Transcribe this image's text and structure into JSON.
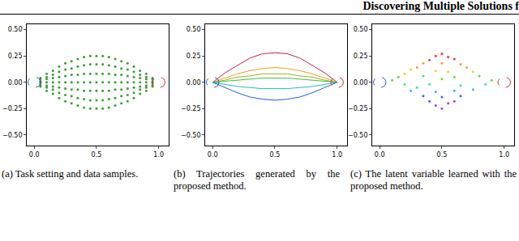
{
  "header": "Discovering Multiple Solutions f",
  "chart_data": [
    {
      "type": "scatter",
      "caption": "(a) Task setting and data samples.",
      "xlim": [
        -0.06,
        1.08
      ],
      "ylim": [
        -0.6,
        0.55
      ],
      "xticks": [
        {
          "value": 0,
          "label": "0.0"
        },
        {
          "value": 0.5,
          "label": "0.5"
        },
        {
          "value": 1,
          "label": "1.0"
        }
      ],
      "yticks": [
        {
          "value": -0.5,
          "label": "−0.50"
        },
        {
          "value": -0.25,
          "label": "−0.25"
        },
        {
          "value": 0,
          "label": "0.00"
        },
        {
          "value": 0.25,
          "label": "0.25"
        },
        {
          "value": 0.5,
          "label": "0.50"
        }
      ],
      "grid": false,
      "regions": [
        {
          "x": 0,
          "y": 0,
          "r": 0.05,
          "color": "#3050d0",
          "line_style": "dashed"
        },
        {
          "x": 1,
          "y": 0,
          "r": 0.05,
          "color": "#d03030",
          "line_style": "dashed"
        }
      ],
      "series": [
        {
          "color": "#3a9a3a",
          "marker": "dot",
          "columns": [
            {
              "x": 0.05,
              "y": [
                -0.04,
                -0.03,
                -0.01,
                0,
                0.01,
                0.03,
                0.04
              ]
            },
            {
              "x": 0.1,
              "y": [
                -0.08,
                -0.05,
                -0.03,
                0,
                0.03,
                0.05,
                0.08
              ]
            },
            {
              "x": 0.15,
              "y": [
                -0.11,
                -0.07,
                -0.04,
                0,
                0.04,
                0.07,
                0.11
              ]
            },
            {
              "x": 0.2,
              "y": [
                -0.15,
                -0.1,
                -0.05,
                0,
                0.05,
                0.1,
                0.15
              ]
            },
            {
              "x": 0.25,
              "y": [
                -0.18,
                -0.12,
                -0.06,
                0,
                0.06,
                0.12,
                0.18
              ]
            },
            {
              "x": 0.3,
              "y": [
                -0.2,
                -0.13,
                -0.07,
                0,
                0.07,
                0.13,
                0.2
              ]
            },
            {
              "x": 0.35,
              "y": [
                -0.22,
                -0.15,
                -0.07,
                0,
                0.07,
                0.15,
                0.22
              ]
            },
            {
              "x": 0.4,
              "y": [
                -0.24,
                -0.16,
                -0.08,
                0,
                0.08,
                0.16,
                0.24
              ]
            },
            {
              "x": 0.45,
              "y": [
                -0.25,
                -0.17,
                -0.08,
                0,
                0.08,
                0.17,
                0.25
              ]
            },
            {
              "x": 0.5,
              "y": [
                -0.25,
                -0.17,
                -0.08,
                0,
                0.08,
                0.17,
                0.25
              ]
            },
            {
              "x": 0.55,
              "y": [
                -0.25,
                -0.17,
                -0.08,
                0,
                0.08,
                0.17,
                0.25
              ]
            },
            {
              "x": 0.6,
              "y": [
                -0.24,
                -0.16,
                -0.08,
                0,
                0.08,
                0.16,
                0.24
              ]
            },
            {
              "x": 0.65,
              "y": [
                -0.22,
                -0.15,
                -0.07,
                0,
                0.07,
                0.15,
                0.22
              ]
            },
            {
              "x": 0.7,
              "y": [
                -0.2,
                -0.13,
                -0.07,
                0,
                0.07,
                0.13,
                0.2
              ]
            },
            {
              "x": 0.75,
              "y": [
                -0.18,
                -0.12,
                -0.06,
                0,
                0.06,
                0.12,
                0.18
              ]
            },
            {
              "x": 0.8,
              "y": [
                -0.15,
                -0.1,
                -0.05,
                0,
                0.05,
                0.1,
                0.15
              ]
            },
            {
              "x": 0.85,
              "y": [
                -0.11,
                -0.07,
                -0.04,
                0,
                0.04,
                0.07,
                0.11
              ]
            },
            {
              "x": 0.9,
              "y": [
                -0.08,
                -0.05,
                -0.03,
                0,
                0.03,
                0.05,
                0.08
              ]
            },
            {
              "x": 0.95,
              "y": [
                -0.04,
                -0.03,
                -0.01,
                0,
                0.01,
                0.03,
                0.04
              ]
            }
          ]
        }
      ]
    },
    {
      "type": "line",
      "caption": "(b) Trajectories generated by the proposed method.",
      "xlim": [
        -0.06,
        1.08
      ],
      "ylim": [
        -0.6,
        0.55
      ],
      "xticks": [
        {
          "value": 0,
          "label": "0.0"
        },
        {
          "value": 0.5,
          "label": "0.5"
        },
        {
          "value": 1,
          "label": "1.0"
        }
      ],
      "yticks": [
        {
          "value": -0.5,
          "label": "−0.50"
        },
        {
          "value": -0.25,
          "label": "−0.25"
        },
        {
          "value": 0,
          "label": "0.00"
        },
        {
          "value": 0.25,
          "label": "0.25"
        },
        {
          "value": 0.5,
          "label": "0.50"
        }
      ],
      "grid": false,
      "regions": [
        {
          "x": 0,
          "y": 0,
          "r": 0.05,
          "color": "#3050d0",
          "line_style": "dashed"
        },
        {
          "x": 1,
          "y": 0,
          "r": 0.05,
          "color": "#d03030",
          "line_style": "dashed"
        }
      ],
      "x": [
        0,
        0.1,
        0.2,
        0.3,
        0.4,
        0.5,
        0.6,
        0.7,
        0.8,
        0.9,
        1
      ],
      "series": [
        {
          "color": "#d02040",
          "line_style": "solid",
          "values": [
            0,
            0.09,
            0.16,
            0.23,
            0.27,
            0.28,
            0.27,
            0.23,
            0.16,
            0.09,
            0
          ]
        },
        {
          "color": "#f0a020",
          "line_style": "solid",
          "values": [
            0,
            0.04,
            0.08,
            0.11,
            0.13,
            0.14,
            0.13,
            0.11,
            0.08,
            0.04,
            0
          ]
        },
        {
          "color": "#a0b020",
          "line_style": "solid",
          "values": [
            0,
            0.02,
            0.05,
            0.06,
            0.08,
            0.08,
            0.08,
            0.06,
            0.05,
            0.02,
            0
          ]
        },
        {
          "color": "#40c040",
          "line_style": "solid",
          "values": [
            0,
            0.01,
            0.02,
            0.03,
            0.04,
            0.04,
            0.04,
            0.03,
            0.02,
            0.01,
            0
          ]
        },
        {
          "color": "#20c0c0",
          "line_style": "solid",
          "values": [
            0,
            -0.02,
            -0.04,
            -0.05,
            -0.06,
            -0.06,
            -0.06,
            -0.05,
            -0.04,
            -0.02,
            0
          ]
        },
        {
          "color": "#2060e0",
          "line_style": "solid",
          "values": [
            0,
            -0.05,
            -0.1,
            -0.14,
            -0.16,
            -0.17,
            -0.16,
            -0.14,
            -0.1,
            -0.05,
            0
          ]
        }
      ]
    },
    {
      "type": "scatter",
      "caption": "(c) The latent variable learned with the proposed method.",
      "xlim": [
        -0.06,
        1.08
      ],
      "ylim": [
        -0.6,
        0.55
      ],
      "xticks": [
        {
          "value": 0,
          "label": "0.0"
        },
        {
          "value": 0.5,
          "label": "0.5"
        },
        {
          "value": 1,
          "label": "1.0"
        }
      ],
      "yticks": [
        {
          "value": -0.5,
          "label": "−0.50"
        },
        {
          "value": -0.25,
          "label": "−0.25"
        },
        {
          "value": 0,
          "label": "0.00"
        },
        {
          "value": 0.25,
          "label": "0.25"
        },
        {
          "value": 0.5,
          "label": "0.50"
        }
      ],
      "grid": false,
      "regions": [
        {
          "x": 0,
          "y": 0,
          "r": 0.05,
          "color": "#3050d0",
          "line_style": "dashed"
        },
        {
          "x": 1,
          "y": 0,
          "r": 0.05,
          "color": "#d03030",
          "line_style": "dashed"
        }
      ],
      "series": [
        {
          "marker": "dot",
          "x": [
            0.5,
            0.45,
            0.55,
            0.6,
            0.4,
            0.35,
            0.5,
            0.65,
            0.3,
            0.7,
            0.25,
            0.45,
            0.55,
            0.75,
            0.2,
            0.15,
            0.35,
            0.6,
            0.8,
            0.1,
            0.5,
            0.9,
            0.2,
            0.4,
            0.65,
            0.85,
            0.3,
            0.25,
            0.45,
            0.6,
            0.75,
            0.35,
            0.5,
            0.65,
            0.4,
            0.45,
            0.55,
            0.5,
            0.6
          ],
          "values": [
            0.27,
            0.25,
            0.24,
            0.22,
            0.21,
            0.18,
            0.18,
            0.17,
            0.14,
            0.14,
            0.12,
            0.11,
            0.1,
            0.1,
            0.08,
            0.05,
            0.06,
            0.05,
            0.06,
            0.02,
            0.03,
            0.02,
            -0.02,
            -0.02,
            -0.03,
            -0.02,
            -0.05,
            -0.08,
            -0.09,
            -0.08,
            -0.07,
            -0.13,
            -0.14,
            -0.13,
            -0.18,
            -0.22,
            -0.2,
            -0.25,
            -0.18
          ],
          "colors": [
            "#ff3030",
            "#ff3030",
            "#ff3030",
            "#ff3030",
            "#ff3030",
            "#ff9a30",
            "#ff9a30",
            "#ff9a30",
            "#ff9a30",
            "#ff9a30",
            "#d8e030",
            "#d8e030",
            "#d8e030",
            "#d8e030",
            "#d8e030",
            "#50e050",
            "#50e050",
            "#50e050",
            "#50e050",
            "#50e050",
            "#50e050",
            "#50e050",
            "#40e0b0",
            "#40e0b0",
            "#40e0b0",
            "#40e0b0",
            "#40e0b0",
            "#40b0ff",
            "#40b0ff",
            "#40b0ff",
            "#40b0ff",
            "#4060ff",
            "#4060ff",
            "#4060ff",
            "#4060ff",
            "#a040ff",
            "#a040ff",
            "#a040ff",
            "#a040ff"
          ]
        }
      ]
    }
  ]
}
